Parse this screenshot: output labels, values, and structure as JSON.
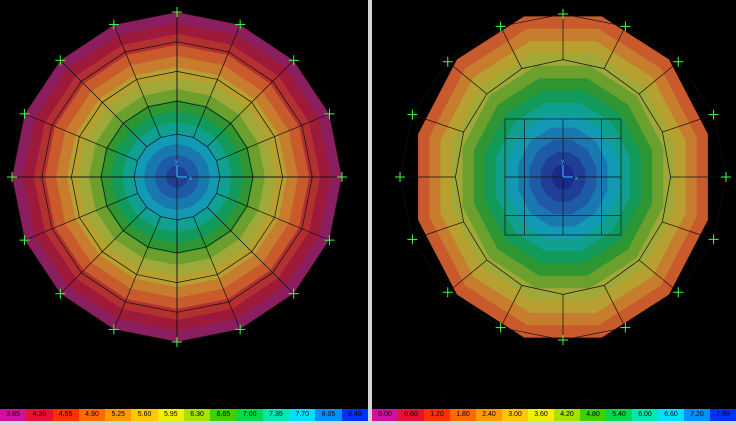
{
  "left_view": {
    "legend": [
      {
        "label": "3.85",
        "color": "#d0109a"
      },
      {
        "label": "4.20",
        "color": "#e81030"
      },
      {
        "label": "4.55",
        "color": "#ff3000"
      },
      {
        "label": "4.90",
        "color": "#ff6a00"
      },
      {
        "label": "5.25",
        "color": "#ff9a00"
      },
      {
        "label": "5.60",
        "color": "#ffc800"
      },
      {
        "label": "5.95",
        "color": "#f0f000"
      },
      {
        "label": "6.30",
        "color": "#a8e000"
      },
      {
        "label": "6.65",
        "color": "#40d000"
      },
      {
        "label": "7.00",
        "color": "#00d850"
      },
      {
        "label": "7.35",
        "color": "#00e8b0"
      },
      {
        "label": "7.70",
        "color": "#00e0ff"
      },
      {
        "label": "8.05",
        "color": "#0090ff"
      },
      {
        "label": "8.40",
        "color": "#0030ff"
      }
    ],
    "bands": [
      "#8a1e5e",
      "#9e1a3a",
      "#b43030",
      "#c85a2c",
      "#c87c2e",
      "#b8a030",
      "#a0a838",
      "#6ca02e",
      "#2e9632",
      "#129a5a",
      "#10a090",
      "#129ab4",
      "#1a78b0",
      "#1e5aa6",
      "#203e96"
    ],
    "axis_labels": {
      "x": "x",
      "y": "y"
    }
  },
  "right_view": {
    "legend": [
      {
        "label": "0.00",
        "color": "#d0109a"
      },
      {
        "label": "0.60",
        "color": "#e81030"
      },
      {
        "label": "1.20",
        "color": "#ff3000"
      },
      {
        "label": "1.80",
        "color": "#ff6a00"
      },
      {
        "label": "2.40",
        "color": "#ff9a00"
      },
      {
        "label": "3.00",
        "color": "#ffc800"
      },
      {
        "label": "3.60",
        "color": "#f0f000"
      },
      {
        "label": "4.20",
        "color": "#a8e000"
      },
      {
        "label": "4.80",
        "color": "#40d000"
      },
      {
        "label": "5.40",
        "color": "#00d850"
      },
      {
        "label": "6.00",
        "color": "#00e8b0"
      },
      {
        "label": "6.60",
        "color": "#00e0ff"
      },
      {
        "label": "7.20",
        "color": "#0090ff"
      },
      {
        "label": "7.80",
        "color": "#0030ff"
      }
    ],
    "bands": [
      "#c85a2c",
      "#c87c2e",
      "#b8a030",
      "#a0a838",
      "#6ca02e",
      "#2e9632",
      "#129a5a",
      "#10a090",
      "#129ab4",
      "#1a78b0",
      "#1e5aa6",
      "#203e96",
      "#1a2a8c"
    ],
    "axis_labels": {
      "x": "x",
      "y": "y"
    }
  }
}
